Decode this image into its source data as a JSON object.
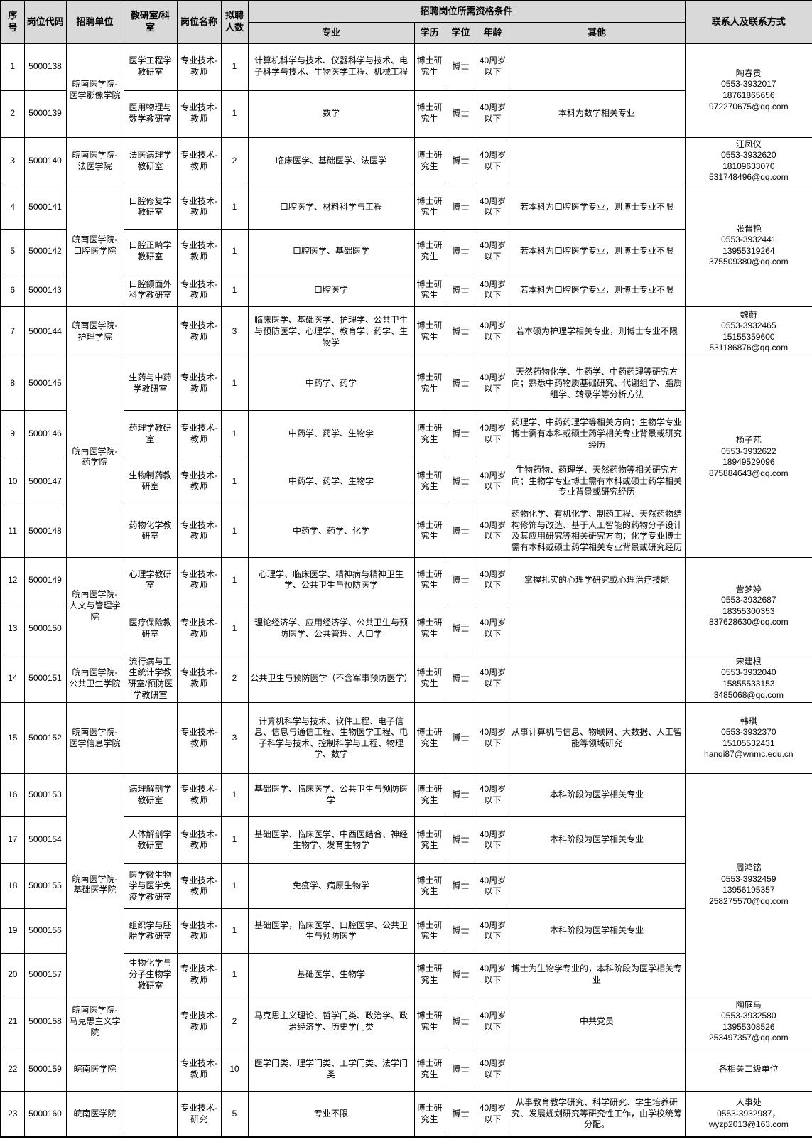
{
  "colors": {
    "header_bg": "#d9d9d9",
    "border": "#000000",
    "text": "#000000",
    "body_bg": "#ffffff"
  },
  "table": {
    "headers": {
      "seq": "序号",
      "code": "岗位代码",
      "unit": "招聘单位",
      "office": "教研室/科室",
      "position": "岗位名称",
      "count": "拟聘人数",
      "qualification_group": "招聘岗位所需资格条件",
      "major": "专业",
      "education": "学历",
      "degree": "学位",
      "age": "年龄",
      "other": "其他",
      "contact": "联系人及联系方式"
    },
    "rows": [
      {
        "no": "1",
        "code": "5000138",
        "office": "医学工程学教研室",
        "position": "专业技术-教师",
        "count": "1",
        "major": "计算机科学与技术、仪器科学与技术、电子科学与技术、生物医学工程、机械工程",
        "education": "博士研究生",
        "degree": "博士",
        "age": "40周岁以下",
        "other": ""
      },
      {
        "no": "2",
        "code": "5000139",
        "office": "医用物理与数学教研室",
        "position": "专业技术-教师",
        "count": "1",
        "major": "数学",
        "education": "博士研究生",
        "degree": "博士",
        "age": "40周岁以下",
        "other": "本科为数学相关专业"
      },
      {
        "no": "3",
        "code": "5000140",
        "office": "法医病理学教研室",
        "position": "专业技术-教师",
        "count": "2",
        "major": "临床医学、基础医学、法医学",
        "education": "博士研究生",
        "degree": "博士",
        "age": "40周岁以下",
        "other": ""
      },
      {
        "no": "4",
        "code": "5000141",
        "office": "口腔修复学教研室",
        "position": "专业技术-教师",
        "count": "1",
        "major": "口腔医学、材料科学与工程",
        "education": "博士研究生",
        "degree": "博士",
        "age": "40周岁以下",
        "other": "若本科为口腔医学专业，则博士专业不限"
      },
      {
        "no": "5",
        "code": "5000142",
        "office": "口腔正畸学教研室",
        "position": "专业技术-教师",
        "count": "1",
        "major": "口腔医学、基础医学",
        "education": "博士研究生",
        "degree": "博士",
        "age": "40周岁以下",
        "other": "若本科为口腔医学专业，则博士专业不限"
      },
      {
        "no": "6",
        "code": "5000143",
        "office": "口腔颌面外科学教研室",
        "position": "专业技术-教师",
        "count": "1",
        "major": "口腔医学",
        "education": "博士研究生",
        "degree": "博士",
        "age": "40周岁以下",
        "other": "若本科为口腔医学专业，则博士专业不限"
      },
      {
        "no": "7",
        "code": "5000144",
        "office": "",
        "position": "专业技术-教师",
        "count": "3",
        "major": "临床医学、基础医学、护理学、公共卫生与预防医学、心理学、教育学、药学、生物学",
        "education": "博士研究生",
        "degree": "博士",
        "age": "40周岁以下",
        "other": "若本硕为护理学相关专业，则博士专业不限"
      },
      {
        "no": "8",
        "code": "5000145",
        "office": "生药与中药学教研室",
        "position": "专业技术-教师",
        "count": "1",
        "major": "中药学、药学",
        "education": "博士研究生",
        "degree": "博士",
        "age": "40周岁以下",
        "other": "天然药物化学、生药学、中药药理等研究方向；熟悉中药物质基础研究、代谢组学、脂质组学、转录学等分析方法"
      },
      {
        "no": "9",
        "code": "5000146",
        "office": "药理学教研室",
        "position": "专业技术-教师",
        "count": "1",
        "major": "中药学、药学、生物学",
        "education": "博士研究生",
        "degree": "博士",
        "age": "40周岁以下",
        "other": "药理学、中药药理学等相关方向；生物学专业博士需有本科或硕士药学相关专业背景或研究经历"
      },
      {
        "no": "10",
        "code": "5000147",
        "office": "生物制药教研室",
        "position": "专业技术-教师",
        "count": "1",
        "major": "中药学、药学、生物学",
        "education": "博士研究生",
        "degree": "博士",
        "age": "40周岁以下",
        "other": "生物药物、药理学、天然药物等相关研究方向；生物学专业博士需有本科或硕士药学相关专业背景或研究经历"
      },
      {
        "no": "11",
        "code": "5000148",
        "office": "药物化学教研室",
        "position": "专业技术-教师",
        "count": "1",
        "major": "中药学、药学、化学",
        "education": "博士研究生",
        "degree": "博士",
        "age": "40周岁以下",
        "other": "药物化学、有机化学、制药工程、天然药物结构修饰与改造、基于人工智能的药物分子设计及其应用研究等相关研究方向；化学专业博士需有本科或硕士药学相关专业背景或研究经历"
      },
      {
        "no": "12",
        "code": "5000149",
        "office": "心理学教研室",
        "position": "专业技术-教师",
        "count": "1",
        "major": "心理学、临床医学、精神病与精神卫生学、公共卫生与预防医学",
        "education": "博士研究生",
        "degree": "博士",
        "age": "40周岁以下",
        "other": "掌握扎实的心理学研究或心理治疗技能"
      },
      {
        "no": "13",
        "code": "5000150",
        "office": "医疗保险教研室",
        "position": "专业技术-教师",
        "count": "1",
        "major": "理论经济学、应用经济学、公共卫生与预防医学、公共管理、人口学",
        "education": "博士研究生",
        "degree": "博士",
        "age": "40周岁以下",
        "other": ""
      },
      {
        "no": "14",
        "code": "5000151",
        "office": "流行病与卫生统计学教研室/预防医学教研室",
        "position": "专业技术-教师",
        "count": "2",
        "major": "公共卫生与预防医学（不含军事预防医学）",
        "education": "博士研究生",
        "degree": "博士",
        "age": "40周岁以下",
        "other": ""
      },
      {
        "no": "15",
        "code": "5000152",
        "office": "",
        "position": "专业技术-教师",
        "count": "3",
        "major": "计算机科学与技术、软件工程、电子信息、信息与通信工程、生物医学工程、电子科学与技术、控制科学与工程、物理学、数学",
        "education": "博士研究生",
        "degree": "博士",
        "age": "40周岁以下",
        "other": "从事计算机与信息、物联网、大数据、人工智能等领域研究"
      },
      {
        "no": "16",
        "code": "5000153",
        "office": "病理解剖学教研室",
        "position": "专业技术-教师",
        "count": "1",
        "major": "基础医学、临床医学、公共卫生与预防医学",
        "education": "博士研究生",
        "degree": "博士",
        "age": "40周岁以下",
        "other": "本科阶段为医学相关专业"
      },
      {
        "no": "17",
        "code": "5000154",
        "office": "人体解剖学教研室",
        "position": "专业技术-教师",
        "count": "1",
        "major": "基础医学、临床医学、中西医结合、神经生物学、发育生物学",
        "education": "博士研究生",
        "degree": "博士",
        "age": "40周岁以下",
        "other": "本科阶段为医学相关专业"
      },
      {
        "no": "18",
        "code": "5000155",
        "office": "医学微生物学与医学免疫学教研室",
        "position": "专业技术-教师",
        "count": "1",
        "major": "免疫学、病原生物学",
        "education": "博士研究生",
        "degree": "博士",
        "age": "40周岁以下",
        "other": ""
      },
      {
        "no": "19",
        "code": "5000156",
        "office": "组织学与胚胎学教研室",
        "position": "专业技术-教师",
        "count": "1",
        "major": "基础医学，临床医学、口腔医学、公共卫生与预防医学",
        "education": "博士研究生",
        "degree": "博士",
        "age": "40周岁以下",
        "other": "本科阶段为医学相关专业"
      },
      {
        "no": "20",
        "code": "5000157",
        "office": "生物化学与分子生物学教研室",
        "position": "专业技术-教师",
        "count": "1",
        "major": "基础医学、生物学",
        "education": "博士研究生",
        "degree": "博士",
        "age": "40周岁以下",
        "other": "博士为生物学专业的，本科阶段为医学相关专业"
      },
      {
        "no": "21",
        "code": "5000158",
        "office": "",
        "position": "专业技术-教师",
        "count": "2",
        "major": "马克思主义理论、哲学门类、政治学、政治经济学、历史学门类",
        "education": "博士研究生",
        "degree": "博士",
        "age": "40周岁以下",
        "other": "中共党员"
      },
      {
        "no": "22",
        "code": "5000159",
        "office": "",
        "position": "专业技术-教师",
        "count": "10",
        "major": "医学门类、理学门类、工学门类、法学门类",
        "education": "博士研究生",
        "degree": "博士",
        "age": "40周岁以下",
        "other": ""
      },
      {
        "no": "23",
        "code": "5000160",
        "office": "",
        "position": "专业技术-研究",
        "count": "5",
        "major": "专业不限",
        "education": "博士研究生",
        "degree": "博士",
        "age": "40周岁以下",
        "other": "从事教育教学研究、科学研究、学生培养研究、发展规划研究等研究性工作，由学校统筹分配。"
      }
    ],
    "unit_groups": [
      {
        "row": 0,
        "span": 2,
        "text": "皖南医学院-医学影像学院"
      },
      {
        "row": 2,
        "span": 1,
        "text": "皖南医学院-法医学院"
      },
      {
        "row": 3,
        "span": 3,
        "text": "皖南医学院-口腔医学院"
      },
      {
        "row": 6,
        "span": 1,
        "text": "皖南医学院-护理学院"
      },
      {
        "row": 7,
        "span": 4,
        "text": "皖南医学院-药学院"
      },
      {
        "row": 11,
        "span": 2,
        "text": "皖南医学院-人文与管理学院"
      },
      {
        "row": 13,
        "span": 1,
        "text": "皖南医学院-公共卫生学院"
      },
      {
        "row": 14,
        "span": 1,
        "text": "皖南医学院-医学信息学院"
      },
      {
        "row": 15,
        "span": 5,
        "text": "皖南医学院-基础医学院"
      },
      {
        "row": 20,
        "span": 1,
        "text": "皖南医学院-马克思主义学院"
      },
      {
        "row": 21,
        "span": 1,
        "text": "皖南医学院"
      },
      {
        "row": 22,
        "span": 1,
        "text": "皖南医学院"
      }
    ],
    "contact_groups": [
      {
        "row": 0,
        "span": 2,
        "lines": [
          "陶春贵",
          "0553-3932017",
          "18761865656",
          "972270675@qq.com"
        ]
      },
      {
        "row": 2,
        "span": 1,
        "lines": [
          "汪凤仪",
          "0553-3932620",
          "18109633070",
          "531748496@qq.com"
        ]
      },
      {
        "row": 3,
        "span": 3,
        "lines": [
          "张晋艳",
          "0553-3932441",
          "13955319264",
          "375509380@qq.com"
        ]
      },
      {
        "row": 6,
        "span": 1,
        "lines": [
          "魏蔚",
          "0553-3932465",
          "15155359600",
          "531186876@qq.com"
        ]
      },
      {
        "row": 7,
        "span": 4,
        "lines": [
          "杨子芃",
          "0553-3932622",
          "18949529096",
          "875884643@qq.com"
        ]
      },
      {
        "row": 11,
        "span": 2,
        "lines": [
          "訾梦婷",
          "0553-3932687",
          "18355300353",
          "837628630@qq.com"
        ]
      },
      {
        "row": 13,
        "span": 1,
        "lines": [
          "宋建根",
          "0553-3932040",
          "15855533153",
          "3485068@qq.com"
        ]
      },
      {
        "row": 14,
        "span": 1,
        "lines": [
          "韩琪",
          "0553-3932370",
          "15105532431",
          "hanqi87@wnmc.edu.cn"
        ]
      },
      {
        "row": 15,
        "span": 5,
        "lines": [
          "周鸿铭",
          "0553-3932459",
          "13956195357",
          "258275570@qq.com"
        ]
      },
      {
        "row": 20,
        "span": 1,
        "lines": [
          "陶庭马",
          "0553-3932580",
          "13955308526",
          "253497357@qq.com"
        ]
      },
      {
        "row": 21,
        "span": 1,
        "lines": [
          "各相关二级单位"
        ]
      },
      {
        "row": 22,
        "span": 1,
        "lines": [
          "人事处",
          "0553-3932987，",
          "wyzp2013@163.com"
        ]
      }
    ]
  }
}
